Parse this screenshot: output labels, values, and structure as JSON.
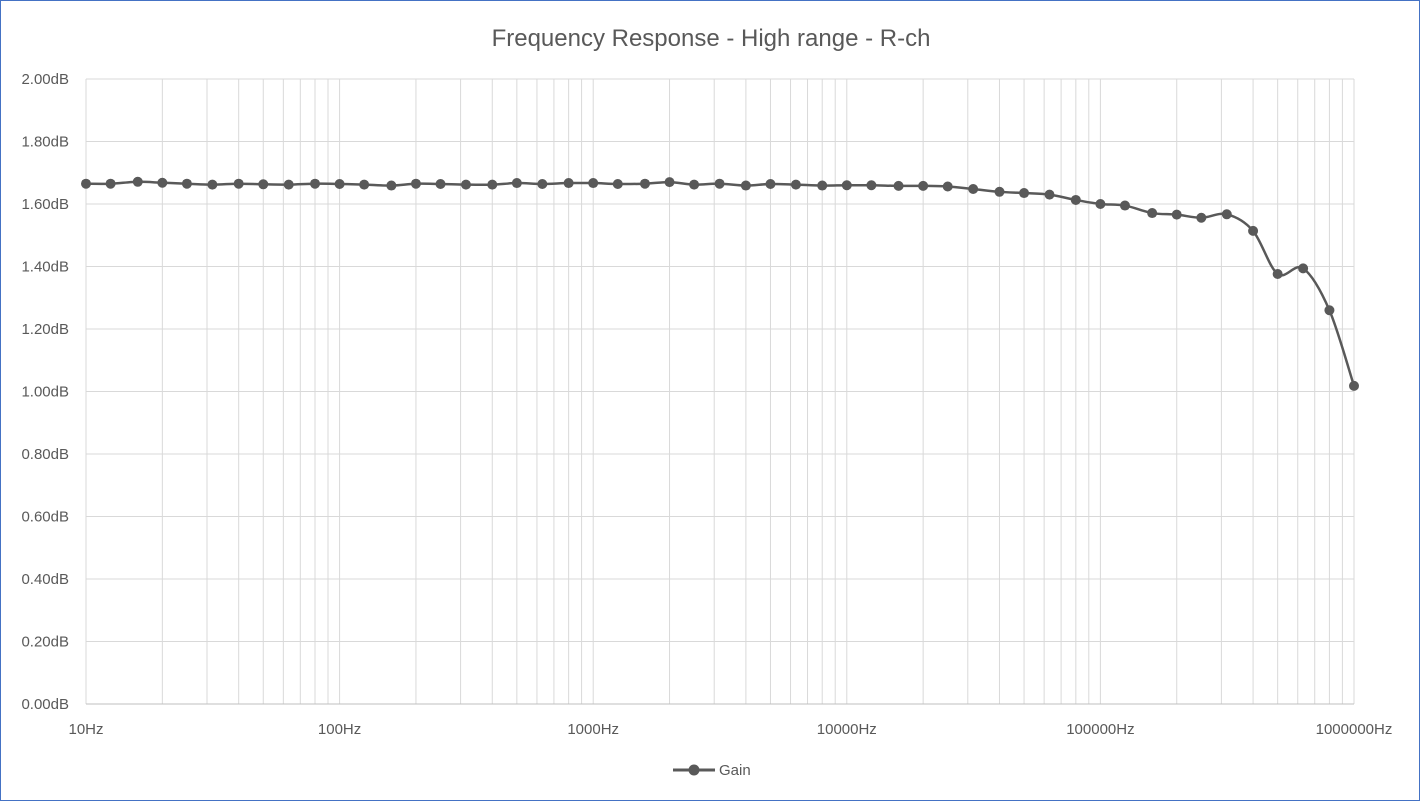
{
  "chart_data": {
    "type": "line",
    "title": "Frequency Response - High range - R-ch",
    "xscale": "log",
    "xlim": [
      10,
      1000000
    ],
    "ylim": [
      0,
      2.0
    ],
    "x_tick_labels": [
      "10Hz",
      "100Hz",
      "1000Hz",
      "10000Hz",
      "100000Hz",
      "1000000Hz"
    ],
    "y_tick_labels": [
      "0.00dB",
      "0.20dB",
      "0.40dB",
      "0.60dB",
      "0.80dB",
      "1.00dB",
      "1.20dB",
      "1.40dB",
      "1.60dB",
      "1.80dB",
      "2.00dB"
    ],
    "grid": "major and minor",
    "legend_position": "bottom",
    "colors": {
      "series": "#595959",
      "grid": "#d9d9d9",
      "border": "#4472c4"
    },
    "series": [
      {
        "name": "Gain",
        "x": [
          10,
          12.5,
          16,
          20,
          25,
          31.5,
          40,
          50,
          63,
          80,
          100,
          125,
          160,
          200,
          250,
          315,
          400,
          500,
          630,
          800,
          1000,
          1250,
          1600,
          2000,
          2500,
          3150,
          4000,
          5000,
          6300,
          8000,
          10000,
          12500,
          16000,
          20000,
          25000,
          31500,
          40000,
          50000,
          63000,
          80000,
          100000,
          125000,
          160000,
          200000,
          250000,
          315000,
          400000,
          500000,
          630000,
          800000,
          1000000
        ],
        "y": [
          1.665,
          1.665,
          1.671,
          1.668,
          1.665,
          1.662,
          1.665,
          1.663,
          1.662,
          1.665,
          1.664,
          1.662,
          1.659,
          1.665,
          1.664,
          1.662,
          1.662,
          1.667,
          1.664,
          1.667,
          1.667,
          1.664,
          1.665,
          1.67,
          1.662,
          1.665,
          1.659,
          1.664,
          1.662,
          1.659,
          1.66,
          1.66,
          1.658,
          1.658,
          1.656,
          1.648,
          1.639,
          1.635,
          1.63,
          1.613,
          1.6,
          1.595,
          1.571,
          1.566,
          1.556,
          1.567,
          1.514,
          1.376,
          1.394,
          1.26,
          1.018
        ]
      }
    ]
  }
}
